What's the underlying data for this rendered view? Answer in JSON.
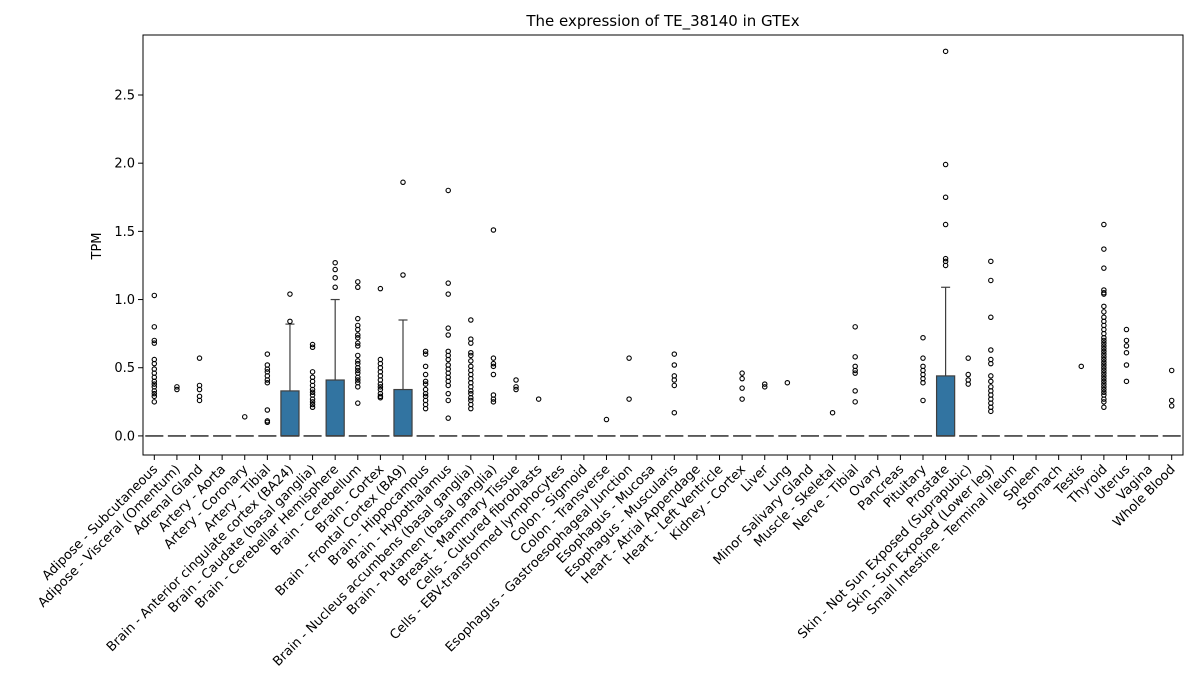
{
  "chart_data": {
    "type": "box",
    "title": "The expression of TE_38140 in GTEx",
    "xlabel": "",
    "ylabel": "TPM",
    "ylim": [
      -0.14,
      2.94
    ],
    "yticks": [
      "0.0",
      "0.5",
      "1.0",
      "1.5",
      "2.0",
      "2.5"
    ],
    "grid": false,
    "box_color": "#3274a1",
    "categories": [
      "Adipose - Subcutaneous",
      "Adipose - Visceral (Omentum)",
      "Adrenal Gland",
      "Artery - Aorta",
      "Artery - Coronary",
      "Artery - Tibial",
      "Brain - Anterior cingulate cortex (BA24)",
      "Brain - Caudate (basal ganglia)",
      "Brain - Cerebellar Hemisphere",
      "Brain - Cerebellum",
      "Brain - Cortex",
      "Brain - Frontal Cortex (BA9)",
      "Brain - Hippocampus",
      "Brain - Hypothalamus",
      "Brain - Nucleus accumbens (basal ganglia)",
      "Brain - Putamen (basal ganglia)",
      "Breast - Mammary Tissue",
      "Cells - Cultured fibroblasts",
      "Cells - EBV-transformed lymphocytes",
      "Colon - Sigmoid",
      "Colon - Transverse",
      "Esophagus - Gastroesophageal Junction",
      "Esophagus - Mucosa",
      "Esophagus - Muscularis",
      "Heart - Atrial Appendage",
      "Heart - Left Ventricle",
      "Kidney - Cortex",
      "Liver",
      "Lung",
      "Minor Salivary Gland",
      "Muscle - Skeletal",
      "Nerve - Tibial",
      "Ovary",
      "Pancreas",
      "Pituitary",
      "Prostate",
      "Skin - Not Sun Exposed (Suprapubic)",
      "Skin - Sun Exposed (Lower leg)",
      "Small Intestine - Terminal Ileum",
      "Spleen",
      "Stomach",
      "Testis",
      "Thyroid",
      "Uterus",
      "Vagina",
      "Whole Blood"
    ],
    "boxes": [
      {
        "q1": 0,
        "median": 0,
        "q3": 0,
        "whisker_high": 0,
        "outliers": [
          1.03,
          0.8,
          0.7,
          0.68,
          0.56,
          0.53,
          0.49,
          0.46,
          0.43,
          0.4,
          0.38,
          0.36,
          0.33,
          0.31,
          0.29,
          0.25
        ]
      },
      {
        "q1": 0,
        "median": 0,
        "q3": 0,
        "whisker_high": 0,
        "outliers": [
          0.36,
          0.34
        ]
      },
      {
        "q1": 0,
        "median": 0,
        "q3": 0,
        "whisker_high": 0,
        "outliers": [
          0.57,
          0.37,
          0.34,
          0.29,
          0.26
        ]
      },
      {
        "q1": 0,
        "median": 0,
        "q3": 0,
        "whisker_high": 0,
        "outliers": []
      },
      {
        "q1": 0,
        "median": 0,
        "q3": 0,
        "whisker_high": 0,
        "outliers": [
          0.14
        ]
      },
      {
        "q1": 0,
        "median": 0,
        "q3": 0,
        "whisker_high": 0,
        "outliers": [
          0.6,
          0.52,
          0.49,
          0.47,
          0.44,
          0.41,
          0.39,
          0.19,
          0.11,
          0.1
        ]
      },
      {
        "q1": 0,
        "median": 0,
        "q3": 0.33,
        "whisker_high": 0.82,
        "outliers": [
          1.04,
          0.84
        ]
      },
      {
        "q1": 0,
        "median": 0,
        "q3": 0,
        "whisker_high": 0,
        "outliers": [
          0.67,
          0.65,
          0.47,
          0.43,
          0.4,
          0.37,
          0.34,
          0.32,
          0.3,
          0.27,
          0.25,
          0.23,
          0.21
        ]
      },
      {
        "q1": 0,
        "median": 0,
        "q3": 0.41,
        "whisker_high": 1.0,
        "outliers": [
          1.27,
          1.22,
          1.16,
          1.09
        ]
      },
      {
        "q1": 0,
        "median": 0,
        "q3": 0,
        "whisker_high": 0,
        "outliers": [
          1.13,
          1.09,
          0.86,
          0.81,
          0.78,
          0.74,
          0.72,
          0.68,
          0.66,
          0.59,
          0.55,
          0.53,
          0.5,
          0.48,
          0.46,
          0.43,
          0.41,
          0.39,
          0.36,
          0.24
        ]
      },
      {
        "q1": 0,
        "median": 0,
        "q3": 0,
        "whisker_high": 0,
        "outliers": [
          1.08,
          0.56,
          0.53,
          0.5,
          0.47,
          0.44,
          0.41,
          0.38,
          0.36,
          0.34,
          0.31,
          0.29,
          0.28
        ]
      },
      {
        "q1": 0,
        "median": 0,
        "q3": 0.34,
        "whisker_high": 0.85,
        "outliers": [
          1.86,
          1.18
        ]
      },
      {
        "q1": 0,
        "median": 0,
        "q3": 0,
        "whisker_high": 0,
        "outliers": [
          0.62,
          0.6,
          0.51,
          0.45,
          0.4,
          0.38,
          0.34,
          0.31,
          0.29,
          0.26,
          0.23,
          0.2
        ]
      },
      {
        "q1": 0,
        "median": 0,
        "q3": 0,
        "whisker_high": 0,
        "outliers": [
          1.8,
          1.12,
          1.04,
          0.79,
          0.74,
          0.62,
          0.59,
          0.56,
          0.52,
          0.49,
          0.46,
          0.43,
          0.4,
          0.37,
          0.31,
          0.26,
          0.13
        ]
      },
      {
        "q1": 0,
        "median": 0,
        "q3": 0,
        "whisker_high": 0,
        "outliers": [
          0.85,
          0.71,
          0.68,
          0.61,
          0.59,
          0.55,
          0.51,
          0.48,
          0.45,
          0.42,
          0.39,
          0.36,
          0.33,
          0.31,
          0.28,
          0.26,
          0.23,
          0.2
        ]
      },
      {
        "q1": 0,
        "median": 0,
        "q3": 0,
        "whisker_high": 0,
        "outliers": [
          1.51,
          0.57,
          0.53,
          0.51,
          0.45,
          0.3,
          0.27,
          0.25
        ]
      },
      {
        "q1": 0,
        "median": 0,
        "q3": 0,
        "whisker_high": 0,
        "outliers": [
          0.41,
          0.36,
          0.34
        ]
      },
      {
        "q1": 0,
        "median": 0,
        "q3": 0,
        "whisker_high": 0,
        "outliers": [
          0.27
        ]
      },
      {
        "q1": 0,
        "median": 0,
        "q3": 0,
        "whisker_high": 0,
        "outliers": []
      },
      {
        "q1": 0,
        "median": 0,
        "q3": 0,
        "whisker_high": 0,
        "outliers": []
      },
      {
        "q1": 0,
        "median": 0,
        "q3": 0,
        "whisker_high": 0,
        "outliers": [
          0.12
        ]
      },
      {
        "q1": 0,
        "median": 0,
        "q3": 0,
        "whisker_high": 0,
        "outliers": [
          0.57,
          0.27
        ]
      },
      {
        "q1": 0,
        "median": 0,
        "q3": 0,
        "whisker_high": 0,
        "outliers": []
      },
      {
        "q1": 0,
        "median": 0,
        "q3": 0,
        "whisker_high": 0,
        "outliers": [
          0.6,
          0.52,
          0.44,
          0.41,
          0.37,
          0.17
        ]
      },
      {
        "q1": 0,
        "median": 0,
        "q3": 0,
        "whisker_high": 0,
        "outliers": []
      },
      {
        "q1": 0,
        "median": 0,
        "q3": 0,
        "whisker_high": 0,
        "outliers": []
      },
      {
        "q1": 0,
        "median": 0,
        "q3": 0,
        "whisker_high": 0,
        "outliers": [
          0.46,
          0.42,
          0.35,
          0.27
        ]
      },
      {
        "q1": 0,
        "median": 0,
        "q3": 0,
        "whisker_high": 0,
        "outliers": [
          0.38,
          0.36
        ]
      },
      {
        "q1": 0,
        "median": 0,
        "q3": 0,
        "whisker_high": 0,
        "outliers": [
          0.39
        ]
      },
      {
        "q1": 0,
        "median": 0,
        "q3": 0,
        "whisker_high": 0,
        "outliers": []
      },
      {
        "q1": 0,
        "median": 0,
        "q3": 0,
        "whisker_high": 0,
        "outliers": [
          0.17
        ]
      },
      {
        "q1": 0,
        "median": 0,
        "q3": 0,
        "whisker_high": 0,
        "outliers": [
          0.8,
          0.58,
          0.51,
          0.48,
          0.46,
          0.33,
          0.25
        ]
      },
      {
        "q1": 0,
        "median": 0,
        "q3": 0,
        "whisker_high": 0,
        "outliers": []
      },
      {
        "q1": 0,
        "median": 0,
        "q3": 0,
        "whisker_high": 0,
        "outliers": []
      },
      {
        "q1": 0,
        "median": 0,
        "q3": 0,
        "whisker_high": 0,
        "outliers": [
          0.72,
          0.57,
          0.51,
          0.48,
          0.45,
          0.42,
          0.39,
          0.26
        ]
      },
      {
        "q1": 0,
        "median": 0,
        "q3": 0.44,
        "whisker_high": 1.09,
        "outliers": [
          2.82,
          1.99,
          1.75,
          1.55,
          1.3,
          1.28,
          1.25
        ]
      },
      {
        "q1": 0,
        "median": 0,
        "q3": 0,
        "whisker_high": 0,
        "outliers": [
          0.57,
          0.45,
          0.41,
          0.38
        ]
      },
      {
        "q1": 0,
        "median": 0,
        "q3": 0,
        "whisker_high": 0,
        "outliers": [
          1.28,
          1.14,
          0.87,
          0.63,
          0.56,
          0.53,
          0.44,
          0.4,
          0.36,
          0.33,
          0.3,
          0.27,
          0.24,
          0.21,
          0.18
        ]
      },
      {
        "q1": 0,
        "median": 0,
        "q3": 0,
        "whisker_high": 0,
        "outliers": []
      },
      {
        "q1": 0,
        "median": 0,
        "q3": 0,
        "whisker_high": 0,
        "outliers": []
      },
      {
        "q1": 0,
        "median": 0,
        "q3": 0,
        "whisker_high": 0,
        "outliers": []
      },
      {
        "q1": 0,
        "median": 0,
        "q3": 0,
        "whisker_high": 0,
        "outliers": [
          0.51
        ]
      },
      {
        "q1": 0,
        "median": 0,
        "q3": 0,
        "whisker_high": 0,
        "outliers": [
          1.55,
          1.37,
          1.23,
          1.07,
          1.05,
          1.04,
          0.95,
          0.91,
          0.87,
          0.84,
          0.81,
          0.78,
          0.75,
          0.72,
          0.7,
          0.68,
          0.66,
          0.64,
          0.62,
          0.6,
          0.58,
          0.56,
          0.54,
          0.52,
          0.5,
          0.48,
          0.46,
          0.44,
          0.42,
          0.4,
          0.38,
          0.36,
          0.34,
          0.32,
          0.3,
          0.27,
          0.25,
          0.21
        ]
      },
      {
        "q1": 0,
        "median": 0,
        "q3": 0,
        "whisker_high": 0,
        "outliers": [
          0.78,
          0.7,
          0.66,
          0.61,
          0.52,
          0.4
        ]
      },
      {
        "q1": 0,
        "median": 0,
        "q3": 0,
        "whisker_high": 0,
        "outliers": []
      },
      {
        "q1": 0,
        "median": 0,
        "q3": 0,
        "whisker_high": 0,
        "outliers": [
          0.48,
          0.26,
          0.22
        ]
      }
    ]
  }
}
